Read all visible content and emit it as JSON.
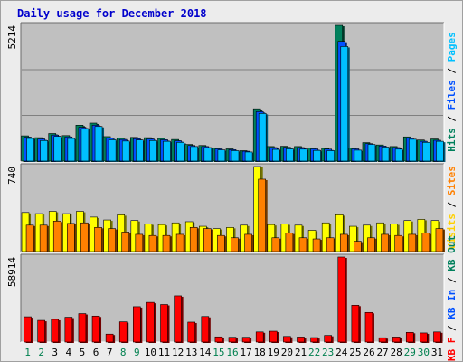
{
  "title": "Daily usage for December 2018",
  "chart_data": {
    "type": "bar",
    "title": "Daily usage for December 2018",
    "x": [
      "1",
      "2",
      "3",
      "4",
      "5",
      "6",
      "7",
      "8",
      "9",
      "10",
      "11",
      "12",
      "13",
      "14",
      "15",
      "16",
      "17",
      "18",
      "19",
      "20",
      "21",
      "22",
      "23",
      "24",
      "25",
      "26",
      "27",
      "28",
      "29",
      "30",
      "31"
    ],
    "weekend_days": [
      "1",
      "2",
      "8",
      "9",
      "15",
      "16",
      "22",
      "23",
      "29",
      "30"
    ],
    "colors": {
      "hits": "#00805c",
      "files": "#0050ff",
      "pages": "#00c0ff",
      "visits": "#ffff00",
      "sites": "#ff8000",
      "kb_in": "#ff0000",
      "weekday": "#000000",
      "weekend": "#00804f",
      "panel_bg": "#c0c0c0",
      "gridline": "#808080"
    },
    "panels": [
      {
        "id": "hits-files-pages",
        "max_label": "5214",
        "ylim": [
          0,
          5214
        ],
        "right_label": [
          {
            "text": "Hits",
            "color": "#00805c"
          },
          {
            "text": " / ",
            "color": "#000000"
          },
          {
            "text": "Files",
            "color": "#0050ff"
          },
          {
            "text": " / ",
            "color": "#000000"
          },
          {
            "text": "Pages",
            "color": "#00c0ff"
          }
        ],
        "series": [
          {
            "name": "Hits",
            "color": "#00805c",
            "values": [
              970,
              900,
              1060,
              980,
              1380,
              1460,
              940,
              880,
              910,
              900,
              870,
              830,
              640,
              600,
              500,
              470,
              400,
              2010,
              560,
              570,
              560,
              500,
              490,
              5214,
              500,
              710,
              620,
              560,
              930,
              810,
              850
            ]
          },
          {
            "name": "Files",
            "color": "#0050ff",
            "values": [
              920,
              850,
              1000,
              930,
              1300,
              1380,
              890,
              830,
              860,
              850,
              820,
              780,
              600,
              560,
              470,
              440,
              380,
              1900,
              520,
              530,
              520,
              470,
              460,
              4600,
              470,
              670,
              580,
              520,
              880,
              760,
              800
            ]
          },
          {
            "name": "Pages",
            "color": "#00c0ff",
            "values": [
              870,
              790,
              950,
              870,
              1250,
              1330,
              820,
              770,
              810,
              790,
              760,
              720,
              560,
              520,
              430,
              400,
              350,
              1830,
              450,
              470,
              460,
              410,
              400,
              4400,
              420,
              640,
              540,
              460,
              840,
              720,
              760
            ]
          }
        ]
      },
      {
        "id": "visits-sites",
        "max_label": "740",
        "ylim": [
          0,
          740
        ],
        "right_label": [
          {
            "text": "Visits",
            "color": "#ffd000"
          },
          {
            "text": " / ",
            "color": "#000000"
          },
          {
            "text": "Sites",
            "color": "#ff8000"
          }
        ],
        "series": [
          {
            "name": "Visits",
            "color": "#ffff00",
            "values": [
              340,
              330,
              350,
              330,
              350,
              300,
              275,
              320,
              270,
              240,
              235,
              250,
              260,
              220,
              200,
              210,
              230,
              740,
              235,
              240,
              230,
              185,
              250,
              320,
              220,
              230,
              250,
              240,
              270,
              280,
              270
            ]
          },
          {
            "name": "Sites",
            "color": "#ff8000",
            "values": [
              230,
              230,
              265,
              245,
              250,
              210,
              200,
              170,
              150,
              140,
              140,
              150,
              210,
              200,
              140,
              120,
              150,
              630,
              120,
              160,
              120,
              110,
              120,
              150,
              90,
              120,
              150,
              140,
              150,
              160,
              200
            ]
          }
        ]
      },
      {
        "id": "kb",
        "max_label": "58914",
        "ylim": [
          0,
          58914
        ],
        "right_label": [
          {
            "text": "KB F",
            "color": "#ff0000"
          },
          {
            "text": " / ",
            "color": "#000000"
          },
          {
            "text": "KB In",
            "color": "#0050ff"
          },
          {
            "text": " / ",
            "color": "#000000"
          },
          {
            "text": "KB Out",
            "color": "#00805c"
          }
        ],
        "series": [
          {
            "name": "KB In",
            "color": "#ff0000",
            "values": [
              17500,
              15000,
              15700,
              17200,
              19700,
              18000,
              5500,
              14000,
              24500,
              27500,
              26000,
              32000,
              13800,
              17700,
              3600,
              3300,
              3300,
              7000,
              7500,
              3900,
              3500,
              3100,
              4600,
              58914,
              25500,
              20500,
              3000,
              3500,
              6700,
              6300,
              7000
            ]
          }
        ]
      }
    ]
  }
}
